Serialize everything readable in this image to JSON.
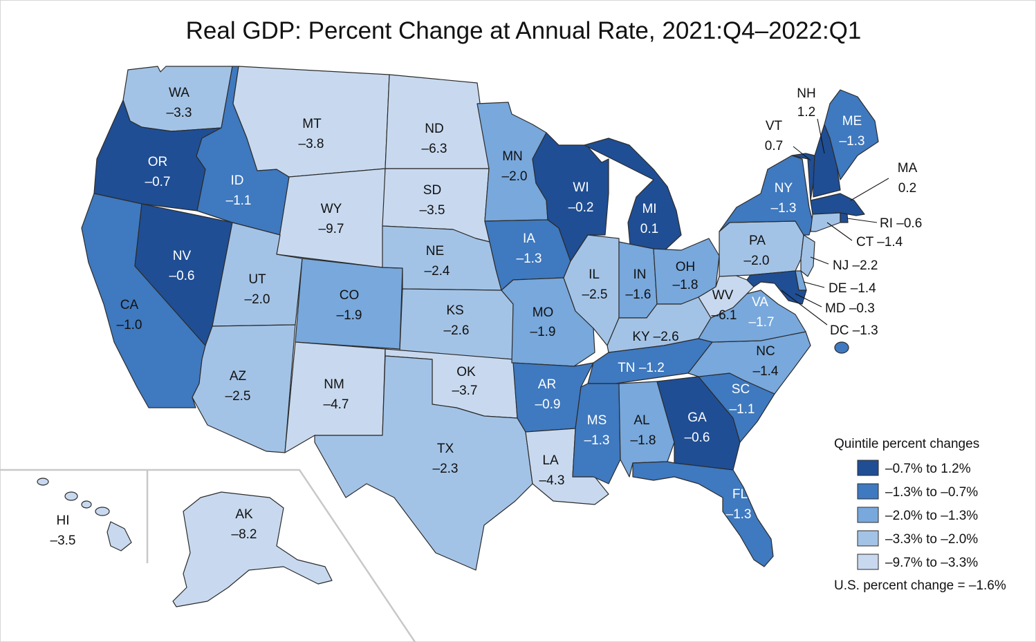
{
  "title": "Real GDP: Percent Change at Annual Rate, 2021:Q4–2022:Q1",
  "colors": {
    "q1": "#1f4e94",
    "q2": "#3f79bf",
    "q3": "#78a8dc",
    "q4": "#a3c3e6",
    "q5": "#c8d9ef",
    "border": "#2b2b2b"
  },
  "legend": {
    "title": "Quintile percent changes",
    "items": [
      {
        "label": "–0.7% to 1.2%",
        "color": "#1f4e94"
      },
      {
        "label": "–1.3% to –0.7%",
        "color": "#3f79bf"
      },
      {
        "label": "–2.0% to –1.3%",
        "color": "#78a8dc"
      },
      {
        "label": "–3.3% to –2.0%",
        "color": "#a3c3e6"
      },
      {
        "label": "–9.7% to –3.3%",
        "color": "#c8d9ef"
      }
    ],
    "us_note": "U.S. percent change = –1.6%"
  },
  "states": {
    "WA": {
      "abbr": "WA",
      "value": "–3.3"
    },
    "OR": {
      "abbr": "OR",
      "value": "–0.7"
    },
    "CA": {
      "abbr": "CA",
      "value": "–1.0"
    },
    "NV": {
      "abbr": "NV",
      "value": "–0.6"
    },
    "ID": {
      "abbr": "ID",
      "value": "–1.1"
    },
    "MT": {
      "abbr": "MT",
      "value": "–3.8"
    },
    "WY": {
      "abbr": "WY",
      "value": "–9.7"
    },
    "UT": {
      "abbr": "UT",
      "value": "–2.0"
    },
    "AZ": {
      "abbr": "AZ",
      "value": "–2.5"
    },
    "CO": {
      "abbr": "CO",
      "value": "–1.9"
    },
    "NM": {
      "abbr": "NM",
      "value": "–4.7"
    },
    "ND": {
      "abbr": "ND",
      "value": "–6.3"
    },
    "SD": {
      "abbr": "SD",
      "value": "–3.5"
    },
    "NE": {
      "abbr": "NE",
      "value": "–2.4"
    },
    "KS": {
      "abbr": "KS",
      "value": "–2.6"
    },
    "OK": {
      "abbr": "OK",
      "value": "–3.7"
    },
    "TX": {
      "abbr": "TX",
      "value": "–2.3"
    },
    "MN": {
      "abbr": "MN",
      "value": "–2.0"
    },
    "IA": {
      "abbr": "IA",
      "value": "–1.3"
    },
    "MO": {
      "abbr": "MO",
      "value": "–1.9"
    },
    "AR": {
      "abbr": "AR",
      "value": "–0.9"
    },
    "LA": {
      "abbr": "LA",
      "value": "–4.3"
    },
    "WI": {
      "abbr": "WI",
      "value": "–0.2"
    },
    "IL": {
      "abbr": "IL",
      "value": "–2.5"
    },
    "MI": {
      "abbr": "MI",
      "value": "0.1"
    },
    "IN": {
      "abbr": "IN",
      "value": "–1.6"
    },
    "OH": {
      "abbr": "OH",
      "value": "–1.8"
    },
    "KY": {
      "abbr": "KY",
      "value": "–2.6"
    },
    "TN": {
      "abbr": "TN",
      "value": "–1.2"
    },
    "MS": {
      "abbr": "MS",
      "value": "–1.3"
    },
    "AL": {
      "abbr": "AL",
      "value": "–1.8"
    },
    "GA": {
      "abbr": "GA",
      "value": "–0.6"
    },
    "FL": {
      "abbr": "FL",
      "value": "–1.3"
    },
    "SC": {
      "abbr": "SC",
      "value": "–1.1"
    },
    "NC": {
      "abbr": "NC",
      "value": "–1.4"
    },
    "VA": {
      "abbr": "VA",
      "value": "–1.7"
    },
    "WV": {
      "abbr": "WV",
      "value": "–6.1"
    },
    "PA": {
      "abbr": "PA",
      "value": "–2.0"
    },
    "NY": {
      "abbr": "NY",
      "value": "–1.3"
    },
    "ME": {
      "abbr": "ME",
      "value": "–1.3"
    },
    "NH": {
      "abbr": "NH",
      "value": "1.2"
    },
    "VT": {
      "abbr": "VT",
      "value": "0.7"
    },
    "MA": {
      "abbr": "MA",
      "value": "0.2"
    },
    "RI": {
      "abbr": "RI",
      "value": "–0.6"
    },
    "CT": {
      "abbr": "CT",
      "value": "–1.4"
    },
    "NJ": {
      "abbr": "NJ",
      "value": "–2.2"
    },
    "DE": {
      "abbr": "DE",
      "value": "–1.4"
    },
    "MD": {
      "abbr": "MD",
      "value": "–0.3"
    },
    "DC": {
      "abbr": "DC",
      "value": "–1.3"
    },
    "AK": {
      "abbr": "AK",
      "value": "–8.2"
    },
    "HI": {
      "abbr": "HI",
      "value": "–3.5"
    }
  }
}
